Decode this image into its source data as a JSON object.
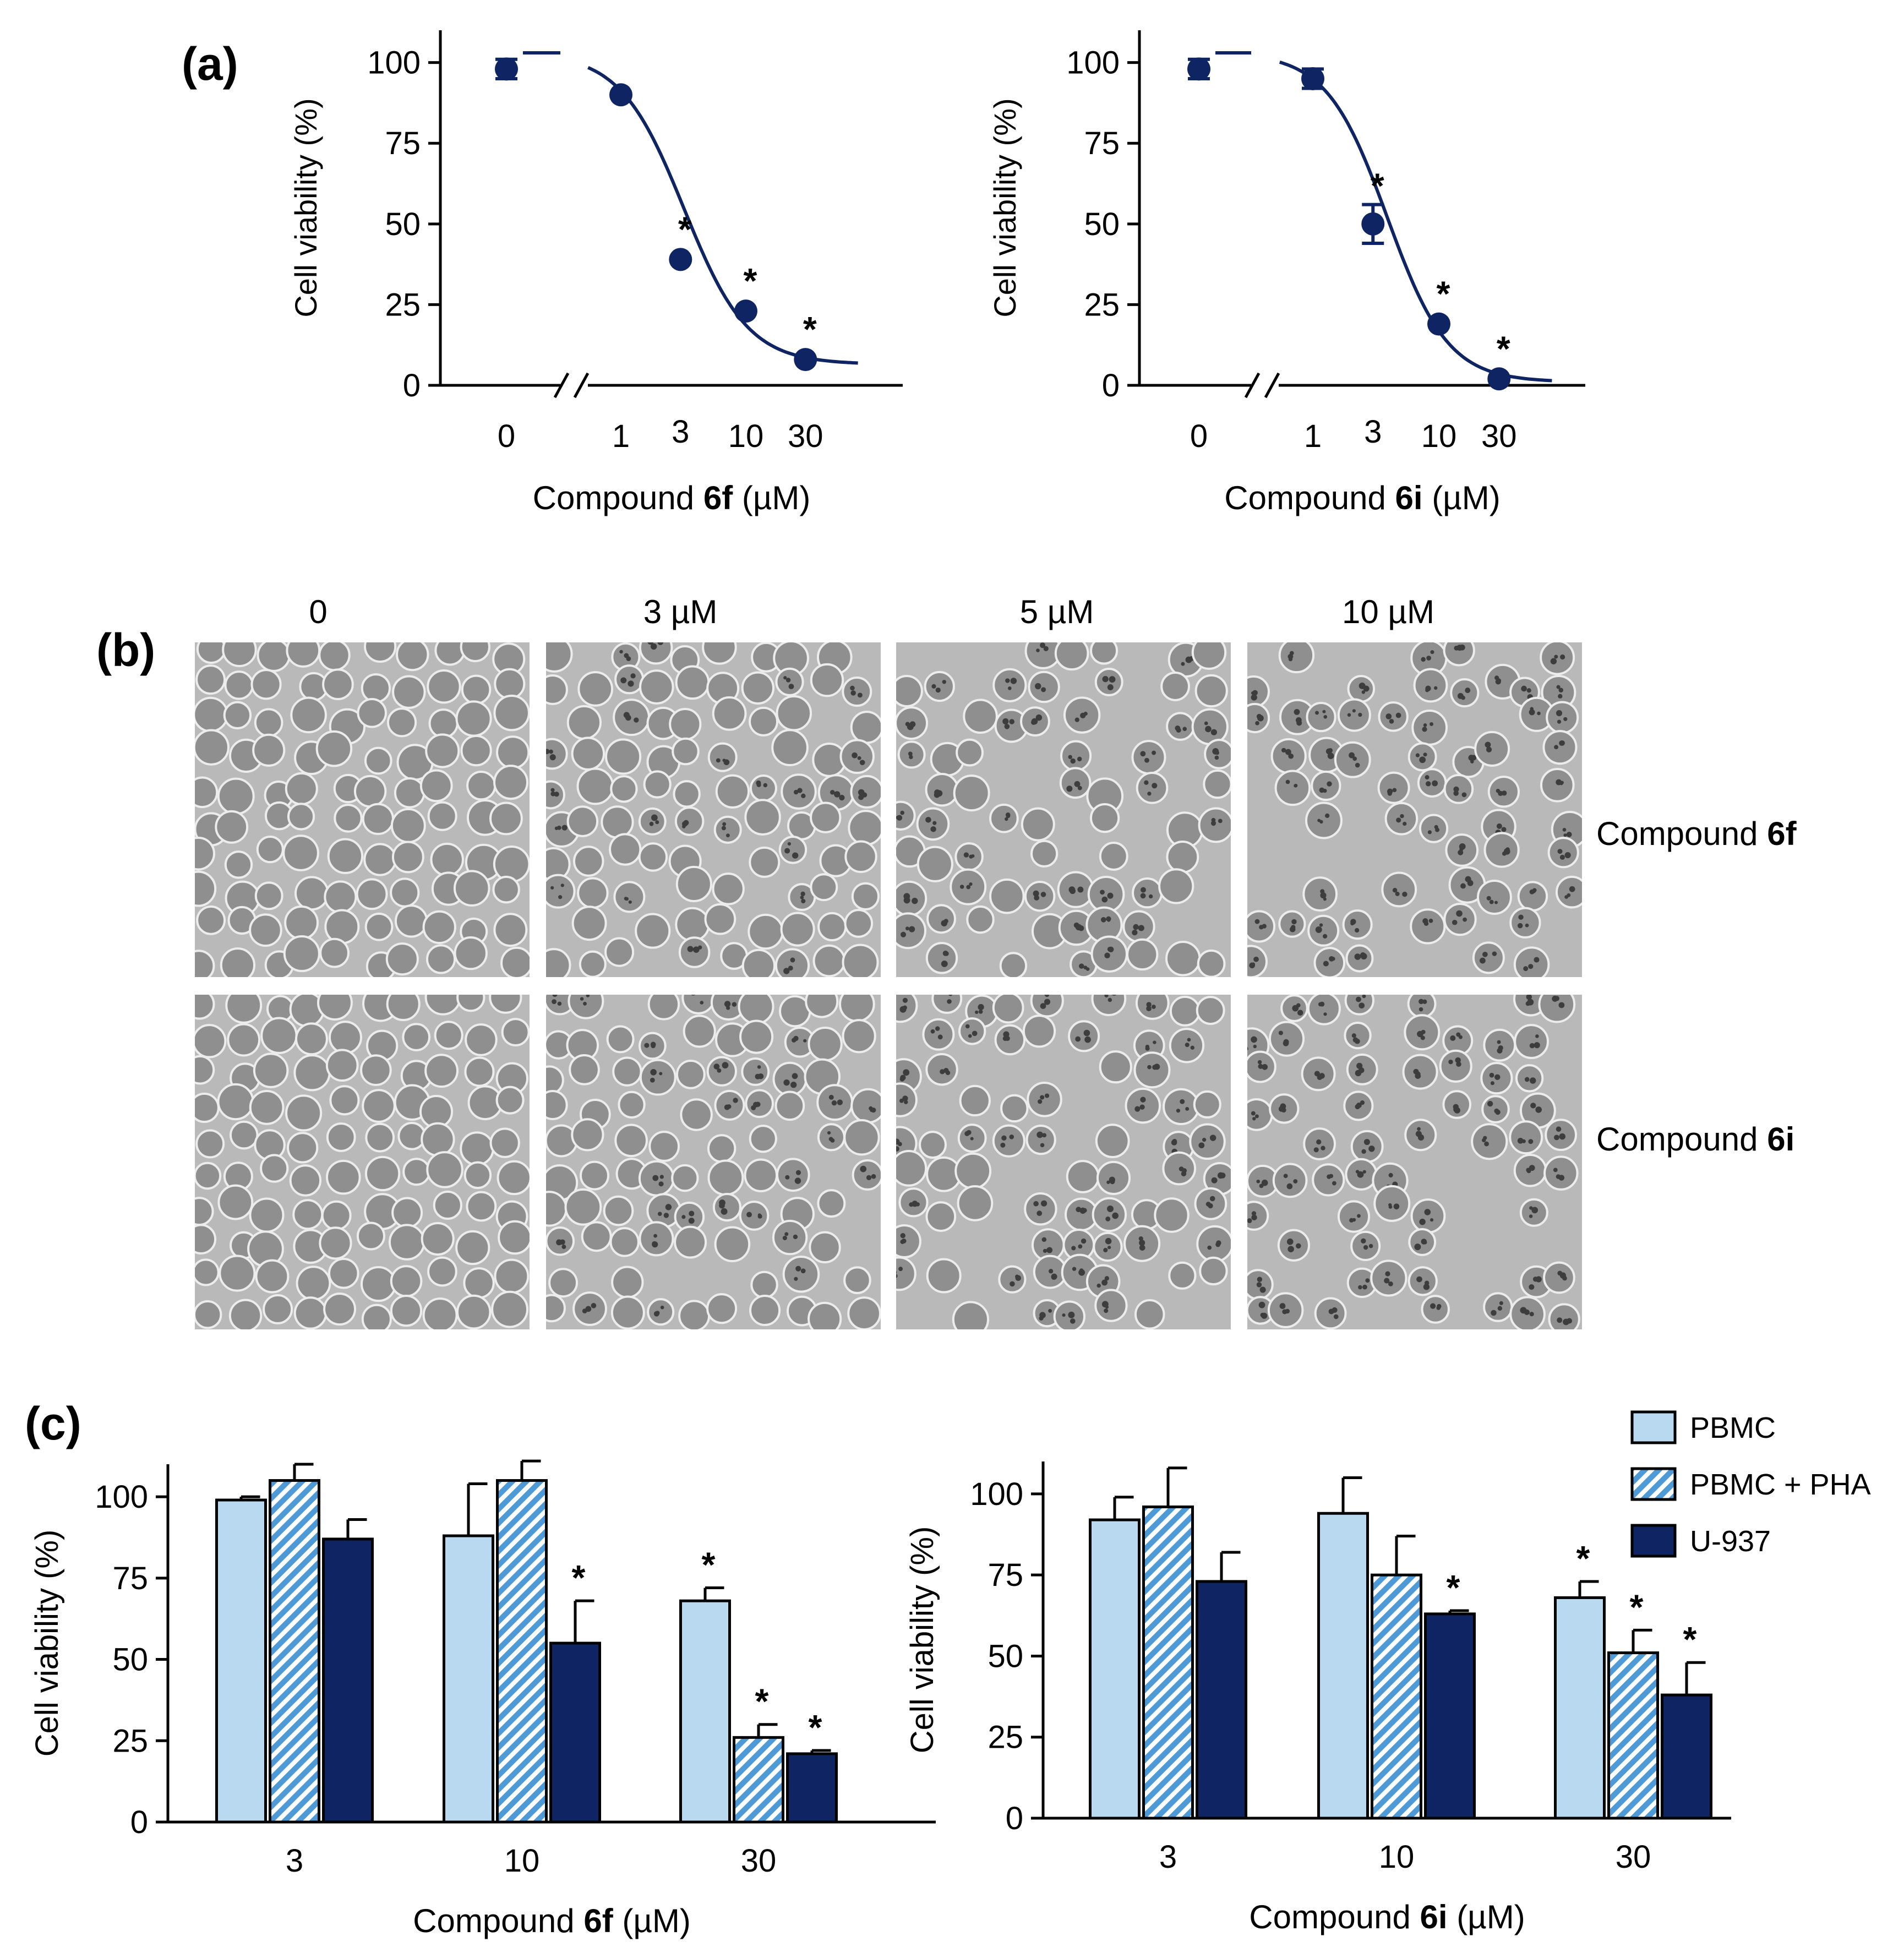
{
  "panel_labels": {
    "a": "(a)",
    "b": "(b)",
    "c": "(c)"
  },
  "microscopy": {
    "concentrations": [
      "0",
      "3 µM",
      "5 µM",
      "10 µM"
    ],
    "rows": [
      {
        "prefix": "Compound ",
        "bold": "6f"
      },
      {
        "prefix": "Compound ",
        "bold": "6i"
      }
    ]
  },
  "chart_data": [
    {
      "type": "scatter",
      "panel": "a",
      "ylabel": "Cell viability (%)",
      "xlabel_prefix": "Compound ",
      "xlabel_bold": "6f",
      "xlabel_suffix": " (µM)",
      "x_ticks": [
        "0",
        "1",
        "3",
        "10",
        "30"
      ],
      "y_ticks": [
        "0",
        "25",
        "50",
        "75",
        "100"
      ],
      "ylim": [
        0,
        110
      ],
      "xscale": "log with axis break after 0",
      "points": [
        {
          "x": 0,
          "y": 98,
          "err": 3,
          "sig": ""
        },
        {
          "x": 1,
          "y": 90,
          "err": 0,
          "sig": ""
        },
        {
          "x": 3,
          "y": 39,
          "err": 0,
          "sig": "*"
        },
        {
          "x": 10,
          "y": 23,
          "err": 0,
          "sig": "*"
        },
        {
          "x": 30,
          "y": 8,
          "err": 0,
          "sig": "*"
        }
      ],
      "fit": {
        "top": 103,
        "bottom": 6.5,
        "ec50": 3.2,
        "hill": 1.7
      }
    },
    {
      "type": "scatter",
      "panel": "a",
      "ylabel": "Cell viability (%)",
      "xlabel_prefix": "Compound ",
      "xlabel_bold": "6i",
      "xlabel_suffix": " (µM)",
      "x_ticks": [
        "0",
        "1",
        "3",
        "10",
        "30"
      ],
      "y_ticks": [
        "0",
        "25",
        "50",
        "75",
        "100"
      ],
      "ylim": [
        0,
        110
      ],
      "xscale": "log with axis break after 0",
      "points": [
        {
          "x": 0,
          "y": 98,
          "err": 3,
          "sig": ""
        },
        {
          "x": 1,
          "y": 95,
          "err": 3,
          "sig": ""
        },
        {
          "x": 3,
          "y": 50,
          "err": 6,
          "sig": "*"
        },
        {
          "x": 10,
          "y": 19,
          "err": 0,
          "sig": "*"
        },
        {
          "x": 30,
          "y": 2,
          "err": 0,
          "sig": "*"
        }
      ],
      "fit": {
        "top": 103,
        "bottom": 1,
        "ec50": 3.9,
        "hill": 1.8
      }
    },
    {
      "type": "bar",
      "panel": "c",
      "ylabel": "Cell viability (%)",
      "xlabel_prefix": "Compound ",
      "xlabel_bold": "6f",
      "xlabel_suffix": " (µM)",
      "categories": [
        "3",
        "10",
        "30"
      ],
      "y_ticks": [
        "0",
        "25",
        "50",
        "75",
        "100"
      ],
      "ylim": [
        0,
        110
      ],
      "series": [
        {
          "name": "PBMC",
          "values": [
            99,
            88,
            68
          ],
          "errors": [
            1,
            16,
            4
          ],
          "sig": [
            "",
            "",
            "*"
          ]
        },
        {
          "name": "PBMC + PHA",
          "values": [
            105,
            105,
            26
          ],
          "errors": [
            5,
            6,
            4
          ],
          "sig": [
            "",
            "",
            "*"
          ]
        },
        {
          "name": "U-937",
          "values": [
            87,
            55,
            21
          ],
          "errors": [
            6,
            13,
            1
          ],
          "sig": [
            "",
            "*",
            "*"
          ]
        }
      ]
    },
    {
      "type": "bar",
      "panel": "c",
      "ylabel": "Cell viability (%)",
      "xlabel_prefix": "Compound ",
      "xlabel_bold": "6i",
      "xlabel_suffix": " (µM)",
      "categories": [
        "3",
        "10",
        "30"
      ],
      "y_ticks": [
        "0",
        "25",
        "50",
        "75",
        "100"
      ],
      "ylim": [
        0,
        110
      ],
      "legend": "top-right",
      "series": [
        {
          "name": "PBMC",
          "values": [
            92,
            94,
            68
          ],
          "errors": [
            7,
            11,
            5
          ],
          "sig": [
            "",
            "",
            "*"
          ]
        },
        {
          "name": "PBMC + PHA",
          "values": [
            96,
            75,
            51
          ],
          "errors": [
            12,
            12,
            7
          ],
          "sig": [
            "",
            "",
            "*"
          ]
        },
        {
          "name": "U-937",
          "values": [
            73,
            63,
            38
          ],
          "errors": [
            9,
            1,
            10
          ],
          "sig": [
            "",
            "*",
            "*"
          ]
        }
      ]
    }
  ],
  "colors": {
    "navy": "#0f2462",
    "light_blue": "#b9d9f0",
    "hatch_blue": "#4d9ad6",
    "micro_bg": "#b9b9b9",
    "cell_fill": "#8f8f8f",
    "cell_edge": "#ececec"
  }
}
